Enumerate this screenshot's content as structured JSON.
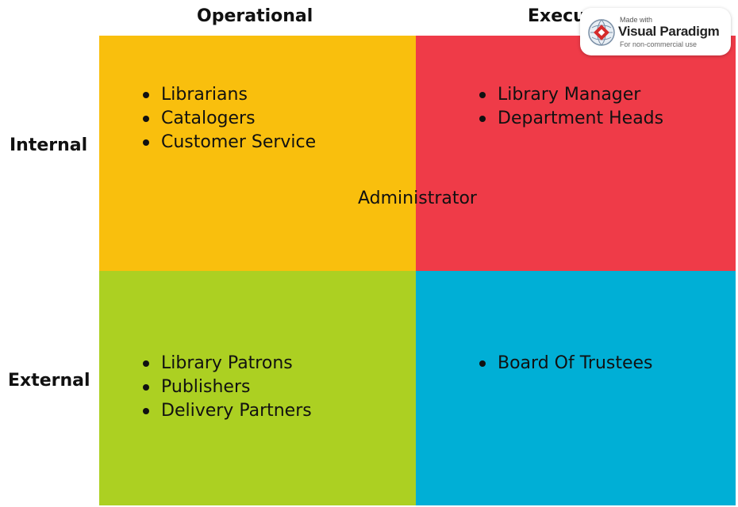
{
  "headers": {
    "col_operational": "Operational",
    "col_executive": "Executive",
    "row_internal": "Internal",
    "row_external": "External"
  },
  "quadrants": {
    "top_left": {
      "color": "#f9bf0d",
      "items": [
        "Librarians",
        "Catalogers",
        "Customer Service"
      ]
    },
    "top_right": {
      "color": "#ef3b48",
      "items": [
        "Library Manager",
        "Department Heads"
      ]
    },
    "bottom_left": {
      "color": "#acd022",
      "items": [
        "Library Patrons",
        "Publishers",
        "Delivery Partners"
      ]
    },
    "bottom_right": {
      "color": "#00afd6",
      "items": [
        "Board Of Trustees"
      ]
    }
  },
  "center_label": "Administrator",
  "watermark": {
    "made_with": "Made with",
    "brand": "Visual Paradigm",
    "subtitle": "For non-commercial use"
  }
}
